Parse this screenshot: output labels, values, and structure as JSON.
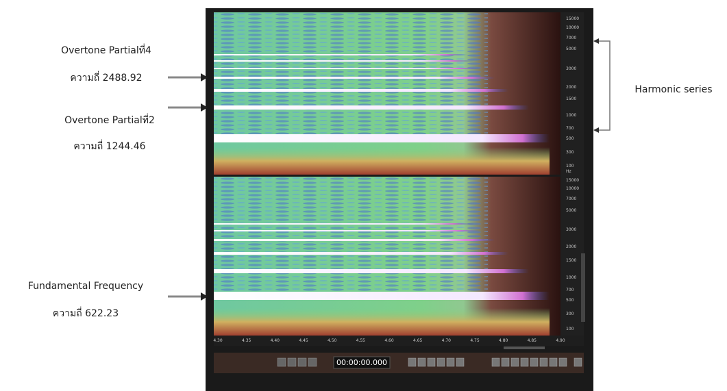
{
  "annotations": {
    "partial4": {
      "name": "Overtone Partialที่4",
      "frequency": "ความถี่ 2488.92"
    },
    "partial2": {
      "name": "Overtone Partialที่2",
      "frequency": "ความถี่ 1244.46"
    },
    "fundamental": {
      "name": "Fundamental Frequency",
      "frequency": "ความถี่ 622.23"
    },
    "harmonic_series": "Harmonic series"
  },
  "spectrogram": {
    "top_frequency_labels": [
      "15000",
      "10000",
      "7000",
      "5000",
      "3000",
      "2000",
      "1500",
      "1000",
      "700",
      "500",
      "300",
      "100",
      "Hz"
    ],
    "bottom_frequency_labels": [
      "15000",
      "10000",
      "7000",
      "5000",
      "3000",
      "2000",
      "1500",
      "1000",
      "700",
      "500",
      "300",
      "100"
    ],
    "time_labels": [
      "4.30",
      "4.35",
      "4.40",
      "4.45",
      "4.50",
      "4.55",
      "4.60",
      "4.65",
      "4.70",
      "4.75",
      "4.80",
      "4.85",
      "4.90"
    ],
    "time_display": "00:00:00.000"
  }
}
